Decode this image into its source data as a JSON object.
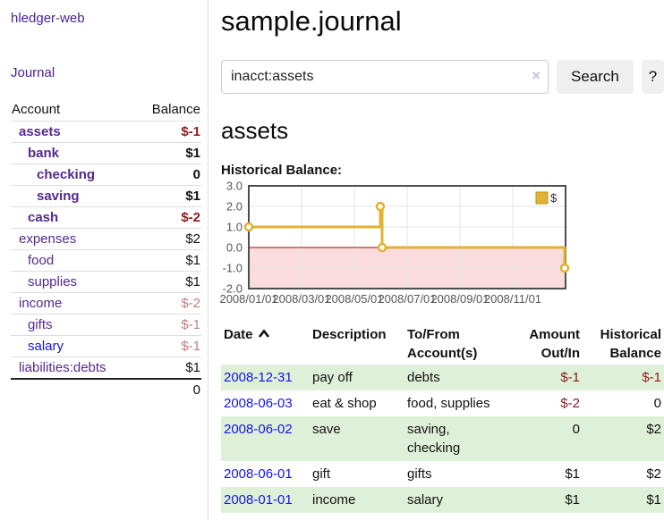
{
  "sidebar": {
    "brand": "hledger-web",
    "nav": {
      "journal_label": "Journal"
    },
    "accounts_table": {
      "account_header": "Account",
      "balance_header": "Balance",
      "accounts": [
        {
          "name": "assets",
          "balance": "$-1",
          "depth": 1,
          "bold": true,
          "neg": "strong"
        },
        {
          "name": "bank",
          "balance": "$1",
          "depth": 2,
          "bold": true,
          "neg": ""
        },
        {
          "name": "checking",
          "balance": "0",
          "depth": 3,
          "bold": true,
          "neg": ""
        },
        {
          "name": "saving",
          "balance": "$1",
          "depth": 3,
          "bold": true,
          "neg": ""
        },
        {
          "name": "cash",
          "balance": "$-2",
          "depth": 2,
          "bold": true,
          "neg": "strong"
        },
        {
          "name": "expenses",
          "balance": "$2",
          "depth": 1,
          "bold": false,
          "neg": ""
        },
        {
          "name": "food",
          "balance": "$1",
          "depth": 2,
          "bold": false,
          "neg": ""
        },
        {
          "name": "supplies",
          "balance": "$1",
          "depth": 2,
          "bold": false,
          "neg": ""
        },
        {
          "name": "income",
          "balance": "$-2",
          "depth": 1,
          "bold": false,
          "neg": "soft"
        },
        {
          "name": "gifts",
          "balance": "$-1",
          "depth": 2,
          "bold": false,
          "neg": "soft"
        },
        {
          "name": "salary",
          "balance": "$-1",
          "depth": 2,
          "bold": false,
          "neg": "soft",
          "link_blue": true
        },
        {
          "name": "liabilities:debts",
          "balance": "$1",
          "depth": 1,
          "bold": false,
          "neg": ""
        }
      ],
      "total": "0"
    }
  },
  "main": {
    "title": "sample.journal",
    "search": {
      "value": "inacct:assets",
      "clear_icon": "×",
      "button_label": "Search",
      "help_label": "?"
    },
    "account_heading": "assets",
    "chart_label": "Historical Balance:"
  },
  "chart_data": {
    "type": "line",
    "title": "Historical Balance:",
    "legend_position": "top-right",
    "grid": true,
    "x_start": "2008-01-01",
    "x_range_days": 366,
    "x_ticks": [
      "2008/01/01",
      "2008/03/01",
      "2008/05/01",
      "2008/07/01",
      "2008/09/01",
      "2008/11/01"
    ],
    "y_ticks": [
      3,
      2,
      1,
      0,
      -1,
      -2
    ],
    "y_tick_labels": [
      "3.0",
      "2.0",
      "1.0",
      "0.0",
      "-1.0",
      "-2.0"
    ],
    "ylim": [
      -2,
      3
    ],
    "negative_region_fill": "#fbdcdc",
    "zero_line_color": "#a40000",
    "series": [
      {
        "name": "$",
        "color": "#e2b232",
        "step": true,
        "points": [
          [
            "2008-01-01",
            1
          ],
          [
            "2008-06-01",
            2
          ],
          [
            "2008-06-03",
            0
          ],
          [
            "2008-12-31",
            -1
          ]
        ]
      }
    ]
  },
  "register": {
    "headers": {
      "date": "Date",
      "description": "Description",
      "accounts": "To/From Account(s)",
      "amount": "Amount Out/In",
      "balance": "Historical Balance"
    },
    "rows": [
      {
        "date": "2008-12-31",
        "description": "pay off",
        "accounts": "debts",
        "amount": "$-1",
        "balance": "$-1"
      },
      {
        "date": "2008-06-03",
        "description": "eat & shop",
        "accounts": "food, supplies",
        "amount": "$-2",
        "balance": "0"
      },
      {
        "date": "2008-06-02",
        "description": "save",
        "accounts": "saving,\nchecking",
        "amount": "0",
        "balance": "$2"
      },
      {
        "date": "2008-06-01",
        "description": "gift",
        "accounts": "gifts",
        "amount": "$1",
        "balance": "$2"
      },
      {
        "date": "2008-01-01",
        "description": "income",
        "accounts": "salary",
        "amount": "$1",
        "balance": "$1"
      }
    ]
  },
  "colors": {
    "link_purple": "#54298f",
    "link_blue": "#1414e6",
    "negative_strong": "#8b1c1c",
    "negative_soft": "#c17e80",
    "row_green": "#dff0d8",
    "chart_gold": "#e2b232",
    "chart_border": "#4d4d4d",
    "grid_gray": "#e6e6e6"
  }
}
